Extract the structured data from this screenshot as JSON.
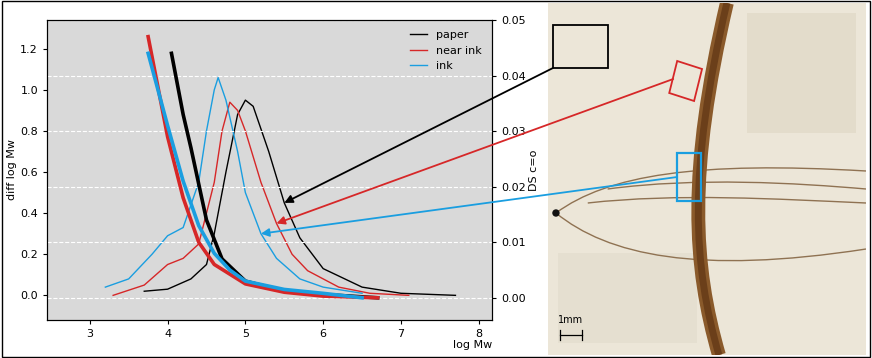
{
  "chart_data": {
    "type": "line",
    "xlabel": "log Mw",
    "ylabel": "diff log Mw",
    "y2label": "DS c=o",
    "xlim": [
      2.45,
      8.17
    ],
    "xticks": [
      3,
      4,
      5,
      6,
      7,
      8
    ],
    "ylim": [
      -0.12,
      1.34
    ],
    "yticks": [
      {
        "value": 0,
        "label": "0.0"
      },
      {
        "value": 0.2,
        "label": "0.2"
      },
      {
        "value": 0.4,
        "label": "0.4"
      },
      {
        "value": 0.6,
        "label": "0.6"
      },
      {
        "value": 0.8,
        "label": "0.8"
      },
      {
        "value": 1.0,
        "label": "1.0"
      },
      {
        "value": 1.2,
        "label": "1.2"
      }
    ],
    "y2lim": [
      -0.004,
      0.05
    ],
    "y2ticks": [
      {
        "value": 0,
        "label": "0.00"
      },
      {
        "value": 0.01,
        "label": "0.01"
      },
      {
        "value": 0.02,
        "label": "0.02"
      },
      {
        "value": 0.03,
        "label": "0.03"
      },
      {
        "value": 0.04,
        "label": "0.04"
      },
      {
        "value": 0.05,
        "label": "0.05"
      }
    ],
    "grid": true,
    "legend": "upper right",
    "series": [
      {
        "name": "paper",
        "color": "#000000",
        "x": [
          3.7,
          4.0,
          4.3,
          4.5,
          4.6,
          4.75,
          4.9,
          5.0,
          5.1,
          5.3,
          5.5,
          5.7,
          6.0,
          6.5,
          7.0,
          7.7
        ],
        "values": [
          0.02,
          0.03,
          0.08,
          0.15,
          0.3,
          0.6,
          0.88,
          0.95,
          0.92,
          0.7,
          0.45,
          0.28,
          0.13,
          0.04,
          0.01,
          0.0
        ]
      },
      {
        "name": "near ink",
        "color": "#d62728",
        "x": [
          3.3,
          3.7,
          4.0,
          4.2,
          4.4,
          4.6,
          4.7,
          4.8,
          4.9,
          5.0,
          5.2,
          5.4,
          5.6,
          5.8,
          6.2,
          6.6,
          7.1
        ],
        "values": [
          0.0,
          0.05,
          0.15,
          0.18,
          0.25,
          0.55,
          0.8,
          0.94,
          0.9,
          0.8,
          0.55,
          0.35,
          0.2,
          0.12,
          0.04,
          0.01,
          0.0
        ]
      },
      {
        "name": "ink",
        "color": "#1a9ee0",
        "x": [
          3.2,
          3.5,
          3.8,
          4.0,
          4.2,
          4.4,
          4.5,
          4.6,
          4.65,
          4.75,
          4.9,
          5.0,
          5.2,
          5.4,
          5.7,
          6.0,
          6.5
        ],
        "values": [
          0.04,
          0.08,
          0.2,
          0.29,
          0.33,
          0.55,
          0.8,
          1.0,
          1.06,
          0.95,
          0.7,
          0.5,
          0.3,
          0.18,
          0.08,
          0.04,
          0.01
        ]
      },
      {
        "axis": "y2",
        "color": "#000000",
        "x": [
          4.05,
          4.2,
          4.3,
          4.5,
          4.7,
          5.0,
          5.5,
          6.0,
          6.7
        ],
        "values": [
          0.044,
          0.033,
          0.027,
          0.014,
          0.007,
          0.003,
          0.0012,
          0.0006,
          0.0
        ]
      },
      {
        "axis": "y2",
        "color": "#d62728",
        "x": [
          3.75,
          4.0,
          4.2,
          4.4,
          4.6,
          5.0,
          5.5,
          6.0,
          6.7
        ],
        "values": [
          0.047,
          0.029,
          0.018,
          0.01,
          0.006,
          0.0025,
          0.001,
          0.0003,
          0.0
        ]
      },
      {
        "axis": "y2",
        "color": "#1a9ee0",
        "x": [
          3.75,
          4.0,
          4.2,
          4.4,
          4.6,
          4.8,
          5.0,
          5.5,
          6.0,
          6.5
        ],
        "values": [
          0.044,
          0.031,
          0.021,
          0.013,
          0.008,
          0.005,
          0.003,
          0.0015,
          0.0008,
          0.0
        ]
      }
    ]
  },
  "image": {
    "scale_label": "1mm"
  }
}
